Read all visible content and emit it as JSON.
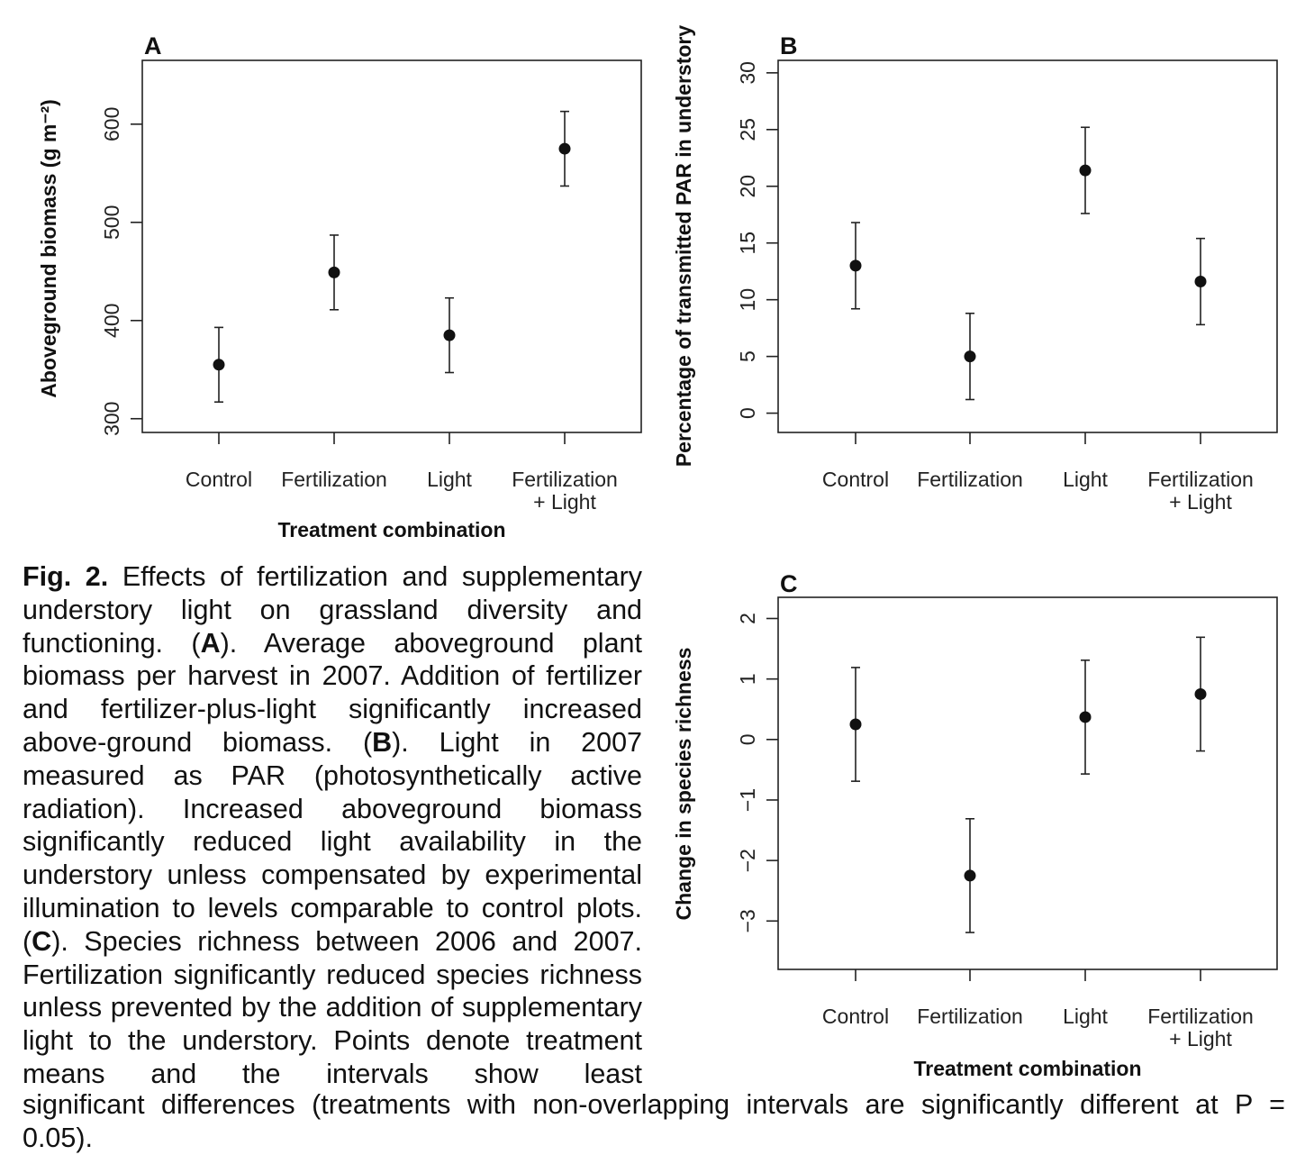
{
  "chart_data": [
    {
      "panel": "A",
      "type": "scatter",
      "categories": [
        "Control",
        "Fertilization",
        "Light",
        "Fertilization\n+ Light"
      ],
      "values": [
        355,
        449,
        385,
        575
      ],
      "interval_low": [
        317,
        411,
        347,
        537
      ],
      "interval_high": [
        393,
        487,
        423,
        613
      ],
      "ylabel": "Aboveground biomass  (g m⁻²)",
      "xlabel": "Treatment combination",
      "yticks": [
        300,
        400,
        500,
        600
      ],
      "ylim": [
        286,
        665
      ],
      "grid": false
    },
    {
      "panel": "B",
      "type": "scatter",
      "categories": [
        "Control",
        "Fertilization",
        "Light",
        "Fertilization\n+ Light"
      ],
      "values": [
        13.0,
        5.0,
        21.4,
        11.6
      ],
      "interval_low": [
        9.2,
        1.2,
        17.6,
        7.8
      ],
      "interval_high": [
        16.8,
        8.8,
        25.2,
        15.4
      ],
      "ylabel": "Percentage of transmitted PAR in understory",
      "xlabel": "",
      "yticks": [
        0,
        5,
        10,
        15,
        20,
        25,
        30
      ],
      "ylim": [
        -1.7,
        31.1
      ],
      "grid": false
    },
    {
      "panel": "C",
      "type": "scatter",
      "categories": [
        "Control",
        "Fertilization",
        "Light",
        "Fertilization\n+ Light"
      ],
      "values": [
        0.25,
        -2.25,
        0.37,
        0.75
      ],
      "interval_low": [
        -0.69,
        -3.19,
        -0.57,
        -0.19
      ],
      "interval_high": [
        1.19,
        -1.31,
        1.31,
        1.69
      ],
      "ylabel": "Change in species richness",
      "xlabel": "Treatment combination",
      "yticks": [
        -3,
        -2,
        -1,
        0,
        1,
        2
      ],
      "ylim": [
        -3.8,
        2.35
      ],
      "grid": false
    }
  ],
  "caption": {
    "fig_label": "Fig. 2.",
    "part1": " Effects of fertilization and supplementary understory light on grassland diversity and functioning. (",
    "ref_a": "A",
    "part2": "). Average aboveground plant biomass per harvest in 2007. Addition of fertil­izer and fertilizer-plus-light significantly in­creased above-ground biomass. (",
    "ref_b": "B",
    "part3": "). Light in 2007 measured as PAR (photosynthetically active radiation). Increased aboveground bio­mass significantly reduced light availability in the understory unless compensated by experimental illumination to levels comparable to control plots. (",
    "ref_c": "C",
    "part4": "). Species richness between 2006 and 2007. Fertilization significantly reduced species rich­ness unless prevented by the addition of sup­plementary light to the understory. Points denote treatment means and the intervals show least",
    "tail_line1": "significant differences (treatments with non-overlapping intervals are significantly different at P =",
    "tail_line2": "0.05)."
  }
}
